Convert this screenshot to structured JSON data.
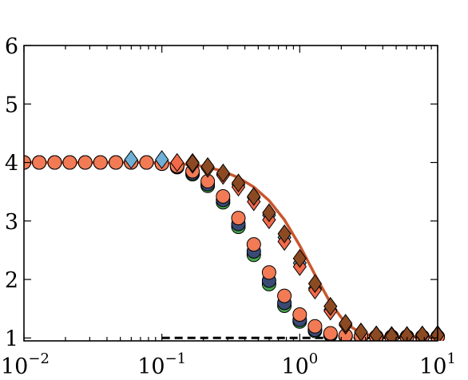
{
  "chart_data": {
    "type": "scatter",
    "title": "",
    "xlabel": "",
    "ylabel": "",
    "x_scale": "log",
    "xlim": [
      0.01,
      10
    ],
    "ylim": [
      0.95,
      6
    ],
    "grid": false,
    "legend": "none",
    "x_ticks": [
      {
        "value": 0.01,
        "base": "10",
        "exp": "−2"
      },
      {
        "value": 0.1,
        "base": "10",
        "exp": "−1"
      },
      {
        "value": 1,
        "base": "10",
        "exp": "0"
      },
      {
        "value": 10,
        "base": "10",
        "exp": "1"
      }
    ],
    "y_ticks": [
      {
        "value": 1,
        "label": "1"
      },
      {
        "value": 2,
        "label": "2"
      },
      {
        "value": 3,
        "label": "3"
      },
      {
        "value": 4,
        "label": "4"
      },
      {
        "value": 5,
        "label": "5"
      },
      {
        "value": 6,
        "label": "6"
      }
    ],
    "series": [
      {
        "color": "#45a54e",
        "marker": "circle",
        "x": [
          0.01,
          0.0129,
          0.0167,
          0.0215,
          0.0278,
          0.0359,
          0.0464,
          0.0599,
          0.0774,
          0.1,
          0.129,
          0.167,
          0.215,
          0.278,
          0.359,
          0.464,
          0.599,
          0.774,
          1.0,
          1.29,
          1.67,
          2.15,
          2.78,
          3.59,
          4.64,
          5.99,
          7.74,
          10
        ],
        "y": [
          4.0,
          4.0,
          4.0,
          4.0,
          4.0,
          4.0,
          4.0,
          4.0,
          4.0,
          3.98,
          3.92,
          3.8,
          3.6,
          3.32,
          2.9,
          2.42,
          1.92,
          1.55,
          1.28,
          1.12,
          1.05,
          1.03,
          1.02,
          1.02,
          1.02,
          1.02,
          1.02,
          1.02
        ]
      },
      {
        "color": "#3a4a74",
        "marker": "circle",
        "x": [
          0.01,
          0.0129,
          0.0167,
          0.0215,
          0.0278,
          0.0359,
          0.0464,
          0.0599,
          0.0774,
          0.1,
          0.129,
          0.167,
          0.215,
          0.278,
          0.359,
          0.464,
          0.599,
          0.774,
          1.0,
          1.29,
          1.67,
          2.15,
          2.78,
          3.59,
          4.64,
          5.99,
          7.74,
          10
        ],
        "y": [
          4.0,
          4.0,
          4.0,
          4.0,
          4.0,
          4.0,
          4.0,
          4.0,
          4.0,
          3.98,
          3.93,
          3.82,
          3.63,
          3.36,
          2.95,
          2.48,
          1.98,
          1.6,
          1.31,
          1.14,
          1.06,
          1.03,
          1.02,
          1.02,
          1.02,
          1.02,
          1.02,
          1.02
        ]
      },
      {
        "color": "#f27a55",
        "marker": "circle",
        "x": [
          0.01,
          0.0129,
          0.0167,
          0.0215,
          0.0278,
          0.0359,
          0.0464,
          0.0599,
          0.0774,
          0.1,
          0.129,
          0.167,
          0.215,
          0.278,
          0.359,
          0.464,
          0.599,
          0.774,
          1.0,
          1.29,
          1.67,
          2.15,
          2.78,
          3.59,
          4.64,
          5.99,
          7.74,
          10
        ],
        "y": [
          4.0,
          4.0,
          4.0,
          4.0,
          4.0,
          4.0,
          4.0,
          4.0,
          4.0,
          3.98,
          3.94,
          3.85,
          3.68,
          3.42,
          3.05,
          2.6,
          2.12,
          1.72,
          1.4,
          1.2,
          1.08,
          1.04,
          1.03,
          1.02,
          1.02,
          1.02,
          1.02,
          1.02
        ]
      },
      {
        "color": "#6fb0d6",
        "marker": "diamond",
        "x": [
          0.0599,
          0.1,
          0.167,
          0.215,
          0.278,
          0.359,
          0.464,
          0.599,
          0.774,
          1.0,
          1.29,
          1.67,
          2.15,
          2.78,
          3.59,
          4.64,
          5.99,
          7.74,
          10
        ],
        "y": [
          4.05,
          4.05,
          4.0,
          3.92,
          3.8,
          3.62,
          3.4,
          3.1,
          2.72,
          2.28,
          1.85,
          1.48,
          1.22,
          1.1,
          1.05,
          1.04,
          1.04,
          1.05,
          1.06
        ]
      },
      {
        "color": "#f26a4a",
        "marker": "diamond",
        "x": [
          0.129,
          0.167,
          0.215,
          0.278,
          0.359,
          0.464,
          0.599,
          0.774,
          1.0,
          1.29,
          1.67,
          2.15,
          2.78,
          3.59,
          4.64,
          5.99,
          7.74,
          10
        ],
        "y": [
          4.0,
          3.97,
          3.9,
          3.78,
          3.58,
          3.33,
          3.02,
          2.65,
          2.22,
          1.82,
          1.46,
          1.22,
          1.1,
          1.05,
          1.04,
          1.04,
          1.04,
          1.05
        ]
      },
      {
        "color": "#8c4a22",
        "marker": "diamond",
        "x": [
          0.167,
          0.215,
          0.278,
          0.359,
          0.464,
          0.599,
          0.774,
          1.0,
          1.29,
          1.67,
          2.15,
          2.78,
          3.59,
          4.64,
          5.99,
          7.74,
          10
        ],
        "y": [
          3.99,
          3.93,
          3.82,
          3.65,
          3.42,
          3.14,
          2.78,
          2.36,
          1.93,
          1.54,
          1.25,
          1.1,
          1.05,
          1.03,
          1.04,
          1.05,
          1.05
        ]
      }
    ],
    "curves": [
      {
        "color": "#c8572e",
        "style": "solid",
        "x": [
          0.01,
          0.0167,
          0.0278,
          0.0464,
          0.0774,
          0.1,
          0.129,
          0.167,
          0.215,
          0.278,
          0.359,
          0.464,
          0.599,
          0.774,
          1.0,
          1.29,
          1.67,
          2.15,
          2.78,
          3.59,
          4.64,
          5.99,
          7.74,
          10
        ],
        "y": [
          4.0,
          4.0,
          4.0,
          4.0,
          4.0,
          3.99,
          3.98,
          3.96,
          3.92,
          3.85,
          3.74,
          3.58,
          3.35,
          3.02,
          2.58,
          2.08,
          1.6,
          1.25,
          1.08,
          1.03,
          1.02,
          1.02,
          1.02,
          1.02
        ]
      },
      {
        "color": "#000000",
        "style": "dashed",
        "x": [
          0.1,
          10
        ],
        "y": [
          1.0,
          1.0
        ]
      }
    ]
  }
}
